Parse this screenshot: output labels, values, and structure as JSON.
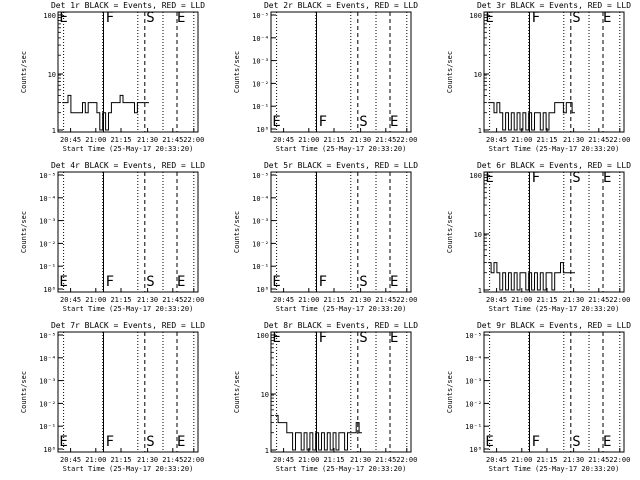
{
  "chart_data": [
    {
      "type": "line",
      "title": "Det 1r BLACK = Events, RED = LLD",
      "xlabel": "Start Time (25-May-17 20:33:20)",
      "ylabel": "Counts/sec",
      "scale": "log",
      "y_ticks": [
        "1",
        "10",
        "100"
      ],
      "x_ticks": [
        "20:45",
        "21:00",
        "21:15",
        "21:30",
        "21:45",
        "22:00"
      ],
      "has_data": true,
      "markers": [
        "E",
        "F",
        "S",
        "E"
      ],
      "series": [
        {
          "values": [
            3,
            3,
            4,
            2,
            2,
            2,
            2,
            3,
            2,
            3,
            3,
            3,
            2,
            1,
            2,
            1,
            2,
            3,
            3,
            3,
            4,
            3,
            3,
            3,
            3,
            2,
            3,
            3,
            3,
            3
          ]
        }
      ]
    },
    {
      "type": "line",
      "title": "Det 2r BLACK = Events, RED = LLD",
      "xlabel": "Start Time (25-May-17 20:33:20)",
      "ylabel": "Counts/sec",
      "scale": "small",
      "y_ticks": [
        "10⁰",
        "10⁻¹",
        "10⁻²",
        "10⁻³",
        "10⁻⁴",
        "10⁻⁵"
      ],
      "x_ticks": [
        "20:45",
        "21:00",
        "21:15",
        "21:30",
        "21:45",
        "22:00"
      ],
      "has_data": false,
      "markers": [
        "E",
        "F",
        "S",
        "E"
      ],
      "series": [
        {
          "values": []
        }
      ]
    },
    {
      "type": "line",
      "title": "Det 3r BLACK = Events, RED = LLD",
      "xlabel": "Start Time (25-May-17 20:33:20)",
      "ylabel": "Counts/sec",
      "scale": "log",
      "y_ticks": [
        "1",
        "10",
        "100"
      ],
      "x_ticks": [
        "20:45",
        "21:00",
        "21:15",
        "21:30",
        "21:45",
        "22:00"
      ],
      "has_data": true,
      "markers": [
        "E",
        "F",
        "S",
        "E"
      ],
      "series": [
        {
          "values": [
            3,
            3,
            2,
            3,
            2,
            1,
            2,
            1,
            2,
            1,
            2,
            1,
            2,
            1,
            2,
            1,
            2,
            2,
            1,
            2,
            1,
            2,
            2,
            3,
            3,
            3,
            2,
            3,
            3,
            2
          ]
        }
      ]
    },
    {
      "type": "line",
      "title": "Det 4r BLACK = Events, RED = LLD",
      "xlabel": "Start Time (25-May-17 20:33:20)",
      "ylabel": "Counts/sec",
      "scale": "small",
      "y_ticks": [
        "10⁰",
        "10⁻¹",
        "10⁻²",
        "10⁻³",
        "10⁻⁴",
        "10⁻⁵"
      ],
      "x_ticks": [
        "20:45",
        "21:00",
        "21:15",
        "21:30",
        "21:45",
        "22:00"
      ],
      "has_data": false,
      "markers": [
        "E",
        "F",
        "S",
        "E"
      ],
      "series": [
        {
          "values": []
        }
      ]
    },
    {
      "type": "line",
      "title": "Det 5r BLACK = Events, RED = LLD",
      "xlabel": "Start Time (25-May-17 20:33:20)",
      "ylabel": "Counts/sec",
      "scale": "small",
      "y_ticks": [
        "10⁰",
        "10⁻¹",
        "10⁻²",
        "10⁻³",
        "10⁻⁴",
        "10⁻⁵"
      ],
      "x_ticks": [
        "20:45",
        "21:00",
        "21:15",
        "21:30",
        "21:45",
        "22:00"
      ],
      "has_data": false,
      "markers": [
        "E",
        "F",
        "S",
        "E"
      ],
      "series": [
        {
          "values": []
        }
      ]
    },
    {
      "type": "line",
      "title": "Det 6r BLACK = Events, RED = LLD",
      "xlabel": "Start Time (25-May-17 20:33:20)",
      "ylabel": "Counts/sec",
      "scale": "log",
      "y_ticks": [
        "1",
        "10",
        "100"
      ],
      "x_ticks": [
        "20:45",
        "21:00",
        "21:15",
        "21:30",
        "21:45",
        "22:00"
      ],
      "has_data": true,
      "markers": [
        "E",
        "F",
        "S",
        "E"
      ],
      "series": [
        {
          "values": [
            3,
            2,
            3,
            2,
            1,
            2,
            1,
            2,
            1,
            2,
            1,
            2,
            2,
            1,
            2,
            1,
            2,
            1,
            2,
            1,
            2,
            2,
            1,
            2,
            2,
            3,
            2,
            2,
            2,
            2
          ]
        }
      ]
    },
    {
      "type": "line",
      "title": "Det 7r BLACK = Events, RED = LLD",
      "xlabel": "Start Time (25-May-17 20:33:20)",
      "ylabel": "Counts/sec",
      "scale": "small",
      "y_ticks": [
        "10⁰",
        "10⁻¹",
        "10⁻²",
        "10⁻³",
        "10⁻⁴",
        "10⁻⁵"
      ],
      "x_ticks": [
        "20:45",
        "21:00",
        "21:15",
        "21:30",
        "21:45",
        "22:00"
      ],
      "has_data": false,
      "markers": [
        "E",
        "F",
        "S",
        "E"
      ],
      "series": [
        {
          "values": []
        }
      ]
    },
    {
      "type": "line",
      "title": "Det 8r BLACK = Events, RED = LLD",
      "xlabel": "Start Time (25-May-17 20:33:20)",
      "ylabel": "Counts/sec",
      "scale": "log",
      "y_ticks": [
        "1",
        "10",
        "100"
      ],
      "x_ticks": [
        "20:45",
        "21:00",
        "21:15",
        "21:30",
        "21:45",
        "22:00"
      ],
      "has_data": true,
      "markers": [
        "E",
        "F",
        "S",
        "E"
      ],
      "series": [
        {
          "values": [
            4,
            3,
            3,
            3,
            2,
            2,
            1,
            2,
            2,
            1,
            2,
            1,
            2,
            1,
            2,
            1,
            2,
            1,
            2,
            1,
            2,
            1,
            2,
            2,
            1,
            2,
            2,
            2,
            3,
            2
          ]
        }
      ]
    },
    {
      "type": "line",
      "title": "Det 9r BLACK = Events, RED = LLD",
      "xlabel": "Start Time (25-May-17 20:33:20)",
      "ylabel": "Counts/sec",
      "scale": "small",
      "y_ticks": [
        "10⁰",
        "10⁻¹",
        "10⁻²",
        "10⁻³",
        "10⁻⁴",
        "10⁻⁵"
      ],
      "x_ticks": [
        "20:45",
        "21:00",
        "21:15",
        "21:30",
        "21:45",
        "22:00"
      ],
      "has_data": false,
      "markers": [
        "E",
        "F",
        "S",
        "E"
      ],
      "series": [
        {
          "values": []
        }
      ]
    }
  ]
}
